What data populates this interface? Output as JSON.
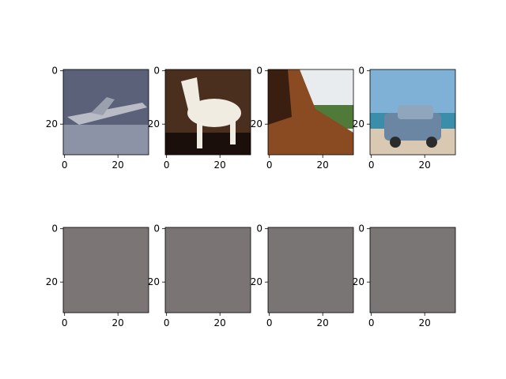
{
  "figure": {
    "background": "#ffffff",
    "axes_color": "#000000",
    "panels": [
      {
        "row": "top",
        "scene": "airplane",
        "description_colors": {
          "sky": "#5a6178",
          "body": "#b9bcc4",
          "ground": "#8d93a6"
        },
        "xticks": [
          "0",
          "20"
        ],
        "yticks": [
          "0",
          "20"
        ]
      },
      {
        "row": "top",
        "scene": "horse",
        "description_colors": {
          "bg": "#4a2f1f",
          "body": "#f1ece1",
          "floor": "#1a0f0a"
        },
        "xticks": [
          "0",
          "20"
        ],
        "yticks": [
          "0",
          "20"
        ]
      },
      {
        "row": "top",
        "scene": "horse-closeup",
        "description_colors": {
          "bg": "#e8ecef",
          "fur": "#8a4b22",
          "ground": "#4f7a3a"
        },
        "xticks": [
          "0",
          "20"
        ],
        "yticks": [
          "0",
          "20"
        ]
      },
      {
        "row": "top",
        "scene": "car",
        "description_colors": {
          "sky": "#7fb0d6",
          "sea": "#3a8ea9",
          "car": "#6a86a2",
          "sand": "#d9c9b2"
        },
        "xticks": [
          "0",
          "20"
        ],
        "yticks": [
          "0",
          "20"
        ]
      },
      {
        "row": "bottom",
        "scene": "noise",
        "fill": "#7b7675",
        "xticks": [
          "0",
          "20"
        ],
        "yticks": [
          "0",
          "20"
        ]
      },
      {
        "row": "bottom",
        "scene": "noise",
        "fill": "#7a7574",
        "xticks": [
          "0",
          "20"
        ],
        "yticks": [
          "0",
          "20"
        ]
      },
      {
        "row": "bottom",
        "scene": "noise",
        "fill": "#797574",
        "xticks": [
          "0",
          "20"
        ],
        "yticks": [
          "0",
          "20"
        ]
      },
      {
        "row": "bottom",
        "scene": "noise",
        "fill": "#7b7676",
        "xticks": [
          "0",
          "20"
        ],
        "yticks": [
          "0",
          "20"
        ]
      }
    ]
  }
}
